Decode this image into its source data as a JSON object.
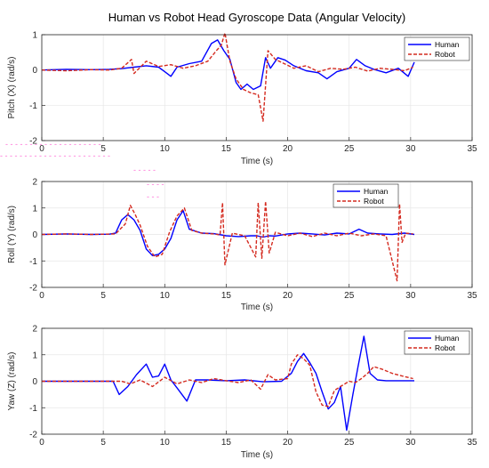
{
  "chart_data": [
    {
      "type": "line",
      "title": "Human vs Robot Head Gyroscope Data (Angular Velocity)",
      "xlabel": "Time (s)",
      "ylabel": "Pitch (X) (rad/s)",
      "xlim": [
        0,
        35
      ],
      "ylim": [
        -2,
        1
      ],
      "xticks": [
        0,
        5,
        10,
        15,
        20,
        25,
        30,
        35
      ],
      "yticks": [
        -2,
        -1,
        0,
        1
      ],
      "grid": true,
      "legend": "top-right",
      "series": [
        {
          "name": "Human",
          "color": "#0000ff",
          "style": "solid",
          "x": [
            0,
            2,
            4,
            5.5,
            6.5,
            7.5,
            8.5,
            9.5,
            10,
            10.5,
            11,
            12,
            13,
            13.8,
            14.3,
            14.8,
            15.3,
            15.8,
            16.2,
            16.7,
            17.2,
            17.8,
            18.2,
            18.6,
            19.2,
            19.8,
            20.5,
            21.5,
            22.5,
            23.2,
            24,
            25,
            25.6,
            26.3,
            27,
            28,
            29,
            29.8,
            30.3
          ],
          "y": [
            0,
            0.02,
            0.01,
            0.02,
            0.04,
            0.08,
            0.12,
            0.08,
            -0.05,
            -0.18,
            0.08,
            0.18,
            0.25,
            0.75,
            0.85,
            0.55,
            0.3,
            -0.35,
            -0.55,
            -0.4,
            -0.55,
            -0.45,
            0.35,
            0.05,
            0.35,
            0.28,
            0.12,
            -0.02,
            -0.08,
            -0.25,
            -0.05,
            0.05,
            0.3,
            0.12,
            0.02,
            -0.08,
            0.05,
            -0.18,
            0.22
          ]
        },
        {
          "name": "Robot",
          "color": "#d42a1f",
          "style": "dashed",
          "x": [
            0,
            2,
            4,
            5.5,
            6.5,
            7.3,
            7.5,
            8.5,
            9.5,
            10.5,
            11.5,
            12.5,
            13.5,
            14.2,
            14.6,
            14.9,
            15.3,
            15.8,
            16.4,
            17,
            17.6,
            18,
            18.4,
            19,
            19.6,
            20.5,
            21.5,
            22.5,
            23.5,
            24.5,
            25.5,
            26.5,
            27.5,
            28.5,
            29.5,
            30.2
          ],
          "y": [
            0,
            -0.02,
            0.01,
            0,
            0.05,
            0.3,
            -0.1,
            0.25,
            0.1,
            0.15,
            0.05,
            0.12,
            0.25,
            0.55,
            0.7,
            1.05,
            0.25,
            -0.25,
            -0.55,
            -0.65,
            -0.7,
            -1.45,
            0.55,
            0.3,
            0.2,
            0.05,
            0.12,
            -0.05,
            0.05,
            0.02,
            0.08,
            -0.03,
            0.05,
            0.02,
            -0.02,
            0.08
          ]
        }
      ]
    },
    {
      "type": "line",
      "xlabel": "Time (s)",
      "ylabel": "Roll (Y) (rad/s)",
      "xlim": [
        0,
        35
      ],
      "ylim": [
        -2,
        2
      ],
      "xticks": [
        0,
        5,
        10,
        15,
        20,
        25,
        30,
        35
      ],
      "yticks": [
        -2,
        -1,
        0,
        1,
        2
      ],
      "grid": true,
      "legend": "top-right",
      "series": [
        {
          "name": "Human",
          "color": "#0000ff",
          "style": "solid",
          "x": [
            0,
            2,
            4,
            5.5,
            6,
            6.5,
            7,
            7.5,
            8,
            8.5,
            9,
            9.5,
            10,
            10.5,
            11,
            11.5,
            12,
            13,
            14,
            15,
            16,
            17,
            17.5,
            18,
            18.5,
            19,
            20,
            21,
            22,
            23,
            24,
            25,
            25.8,
            26.5,
            27.5,
            28.5,
            29.5,
            30.3
          ],
          "y": [
            0,
            0.02,
            0,
            0.01,
            0.05,
            0.55,
            0.75,
            0.55,
            0.15,
            -0.55,
            -0.8,
            -0.75,
            -0.55,
            -0.15,
            0.55,
            0.9,
            0.2,
            0.05,
            0.03,
            -0.05,
            -0.08,
            -0.05,
            -0.05,
            -0.1,
            -0.05,
            -0.06,
            0.02,
            0.05,
            0.02,
            -0.02,
            0.05,
            0.02,
            0.2,
            0.05,
            0.02,
            0,
            0.05,
            0
          ]
        },
        {
          "name": "Robot",
          "color": "#d42a1f",
          "style": "dashed",
          "x": [
            0,
            2,
            4,
            6,
            6.8,
            7.2,
            7.6,
            8,
            8.6,
            9.2,
            9.8,
            10.4,
            11,
            11.6,
            12.2,
            13,
            14,
            14.5,
            14.7,
            14.9,
            15.5,
            16.5,
            17.4,
            17.6,
            17.9,
            18.2,
            18.5,
            19,
            20,
            21,
            22,
            23,
            24,
            25,
            26,
            27,
            28,
            28.9,
            29.1,
            29.3,
            29.6,
            30.2
          ],
          "y": [
            0,
            0.02,
            0,
            0.02,
            0.4,
            1.1,
            0.75,
            0.35,
            -0.45,
            -0.85,
            -0.75,
            0.1,
            0.7,
            1.0,
            0.15,
            0.05,
            0.02,
            -0.02,
            1.2,
            -1.15,
            0.05,
            -0.05,
            -0.85,
            1.2,
            -0.9,
            1.25,
            -0.7,
            0.08,
            -0.05,
            0.05,
            -0.08,
            0.05,
            -0.05,
            0.05,
            -0.05,
            0.02,
            -0.05,
            -1.75,
            1.15,
            -0.3,
            0.05,
            0.02
          ]
        }
      ]
    },
    {
      "type": "line",
      "xlabel": "Time (s)",
      "ylabel": "Yaw (Z) (rad/s)",
      "xlim": [
        0,
        35
      ],
      "ylim": [
        -2,
        2
      ],
      "xticks": [
        0,
        5,
        10,
        15,
        20,
        25,
        30,
        35
      ],
      "yticks": [
        -2,
        -1,
        0,
        1,
        2
      ],
      "grid": true,
      "legend": "top-right",
      "series": [
        {
          "name": "Human",
          "color": "#0000ff",
          "style": "solid",
          "x": [
            0,
            2,
            4,
            5.8,
            6.3,
            7,
            7.7,
            8.5,
            9,
            9.5,
            10,
            10.5,
            11,
            11.8,
            12.5,
            13.5,
            15,
            16.5,
            18,
            19.5,
            20.3,
            20.8,
            21.3,
            21.8,
            22.3,
            22.8,
            23.3,
            23.8,
            24.3,
            24.8,
            25.3,
            25.7,
            26.2,
            26.7,
            27.3,
            28,
            29,
            30.3
          ],
          "y": [
            0,
            0,
            0,
            0,
            -0.5,
            -0.2,
            0.25,
            0.65,
            0.15,
            0.2,
            0.65,
            0.05,
            -0.25,
            -0.75,
            0.05,
            0.05,
            0.02,
            0.05,
            -0.02,
            0,
            0.3,
            0.75,
            1.05,
            0.7,
            0.3,
            -0.4,
            -1.05,
            -0.8,
            -0.2,
            -1.85,
            -0.5,
            0.5,
            1.7,
            0.3,
            0.05,
            0.02,
            0.02,
            0.02
          ]
        },
        {
          "name": "Robot",
          "color": "#d42a1f",
          "style": "dashed",
          "x": [
            0,
            2,
            4,
            6.5,
            7.2,
            8,
            9,
            10,
            11,
            12,
            13,
            14,
            15,
            16,
            17,
            17.8,
            18.4,
            19,
            20,
            20.3,
            20.8,
            21.3,
            21.8,
            22.3,
            22.8,
            23.3,
            23.8,
            24.3,
            25,
            25.5,
            26,
            26.5,
            27,
            27.7,
            28.5,
            29.3,
            30.2
          ],
          "y": [
            0,
            0,
            0,
            0,
            -0.1,
            0.05,
            -0.2,
            0.15,
            -0.1,
            0.05,
            -0.05,
            0.1,
            0.02,
            -0.05,
            0.05,
            -0.3,
            0.25,
            0.05,
            0.1,
            0.65,
            1.0,
            0.85,
            0.6,
            -0.4,
            -0.9,
            -0.95,
            -0.35,
            -0.2,
            0,
            -0.05,
            0.1,
            0.3,
            0.55,
            0.45,
            0.3,
            0.2,
            0.1
          ]
        }
      ]
    }
  ]
}
